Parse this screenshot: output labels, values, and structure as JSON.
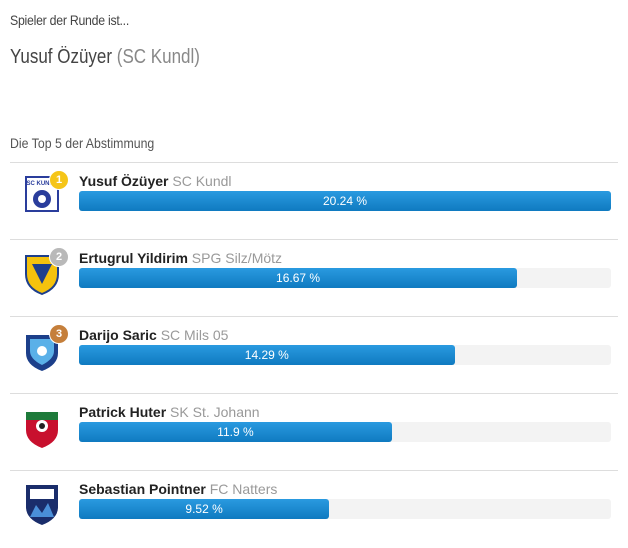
{
  "header": {
    "intro": "Spieler der Runde ist...",
    "winner": "Yusuf Özüyer",
    "winner_club": "(SC Kundl)"
  },
  "section_title": "Die Top 5 der Abstimmung",
  "ranking": {
    "players": [
      {
        "rank": "1",
        "name": "Yusuf Özüyer",
        "club": "SC Kundl",
        "value": 20.24,
        "value_label": "20.24 %"
      },
      {
        "rank": "2",
        "name": "Ertugrul Yildirim",
        "club": "SPG Silz/Mötz",
        "value": 16.67,
        "value_label": "16.67 %"
      },
      {
        "rank": "3",
        "name": "Darijo Saric",
        "club": "SC Mils 05",
        "value": 14.29,
        "value_label": "14.29 %"
      },
      {
        "name": "Patrick Huter",
        "club": "SK St. Johann",
        "value": 11.9,
        "value_label": "11.9 %"
      },
      {
        "name": "Sebastian Pointner",
        "club": "FC Natters",
        "value": 9.52,
        "value_label": "9.52 %"
      }
    ]
  }
}
